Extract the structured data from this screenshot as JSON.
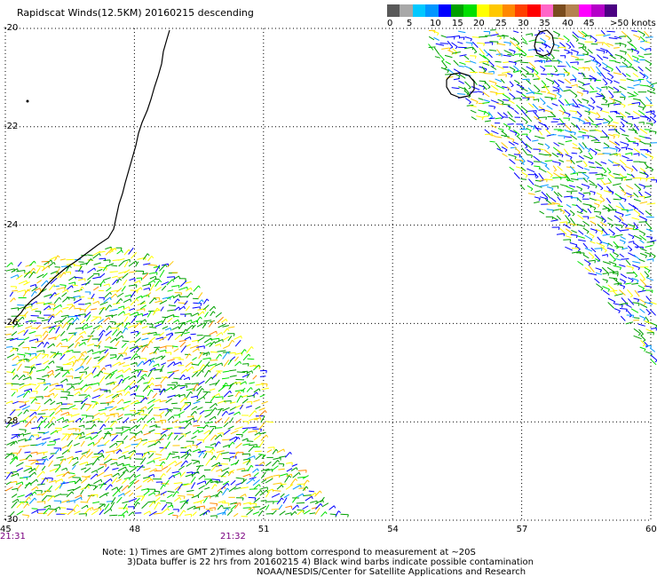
{
  "title": "Rapidscat Winds(12.5KM) 20160215 descending",
  "legend": {
    "colors": [
      "#595959",
      "#a8a8a8",
      "#00c8ff",
      "#0096ff",
      "#0000ff",
      "#00a000",
      "#00e000",
      "#ffff00",
      "#ffc800",
      "#ff8800",
      "#ff4000",
      "#ff0000",
      "#ff66c8",
      "#7a4c1e",
      "#b48250",
      "#ff00ff",
      "#b400c8",
      "#4b0082"
    ],
    "labels": [
      "0",
      "5",
      "10",
      "15",
      "20",
      "25",
      "30",
      "35",
      "40",
      "45",
      ">50 knots"
    ]
  },
  "axes": {
    "lat_labels": [
      "-20",
      "-22",
      "-24",
      "-26",
      "-28",
      "-30"
    ],
    "lon_labels": [
      "45",
      "48",
      "51",
      "54",
      "57",
      "60"
    ]
  },
  "times": [
    "21:31",
    "21:32"
  ],
  "notes": [
    "Note: 1) Times are GMT 2)Times along bottom correspond to measurement at ~20S",
    "3)Data buffer is 22 hrs from 20160215 4) Black wind barbs indicate possible contamination",
    "NOAA/NESDIS/Center for Satellite Applications and Research"
  ],
  "map_data": {
    "region": {
      "lon_range": [
        45,
        60
      ],
      "lat_range": [
        -30,
        -20
      ]
    },
    "land": [
      "Madagascar",
      "Reunion",
      "Mauritius"
    ],
    "swaths": [
      {
        "name": "southwest swath",
        "dominant_speed_knots": [
          15,
          25
        ]
      },
      {
        "name": "northeast swath",
        "dominant_speed_knots": [
          10,
          25
        ]
      }
    ]
  }
}
